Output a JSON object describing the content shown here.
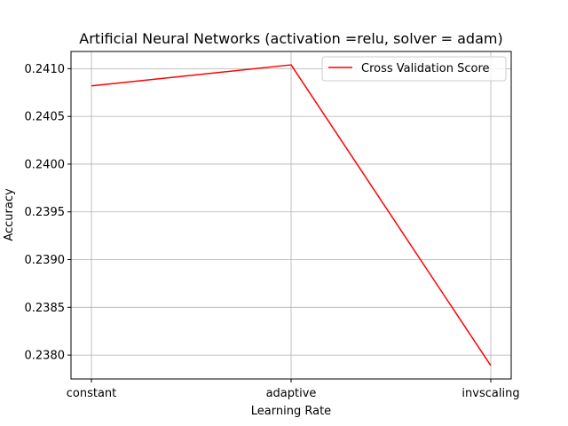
{
  "chart_data": {
    "type": "line",
    "title": "Artificial Neural Networks (activation =relu, solver = adam)",
    "xlabel": "Learning Rate",
    "ylabel": "Accuracy",
    "categories": [
      "constant",
      "adaptive",
      "invscaling"
    ],
    "series": [
      {
        "name": "Cross Validation Score",
        "color": "#ff0000",
        "values": [
          0.24082,
          0.24104,
          0.23789
        ]
      }
    ],
    "ylim": [
      0.23775,
      0.24118
    ],
    "yticks": [
      0.238,
      0.2385,
      0.239,
      0.2395,
      0.24,
      0.2405,
      0.241
    ],
    "ytick_labels": [
      "0.2380",
      "0.2385",
      "0.2390",
      "0.2395",
      "0.2400",
      "0.2405",
      "0.2410"
    ],
    "grid": true,
    "legend_position": "upper right"
  }
}
